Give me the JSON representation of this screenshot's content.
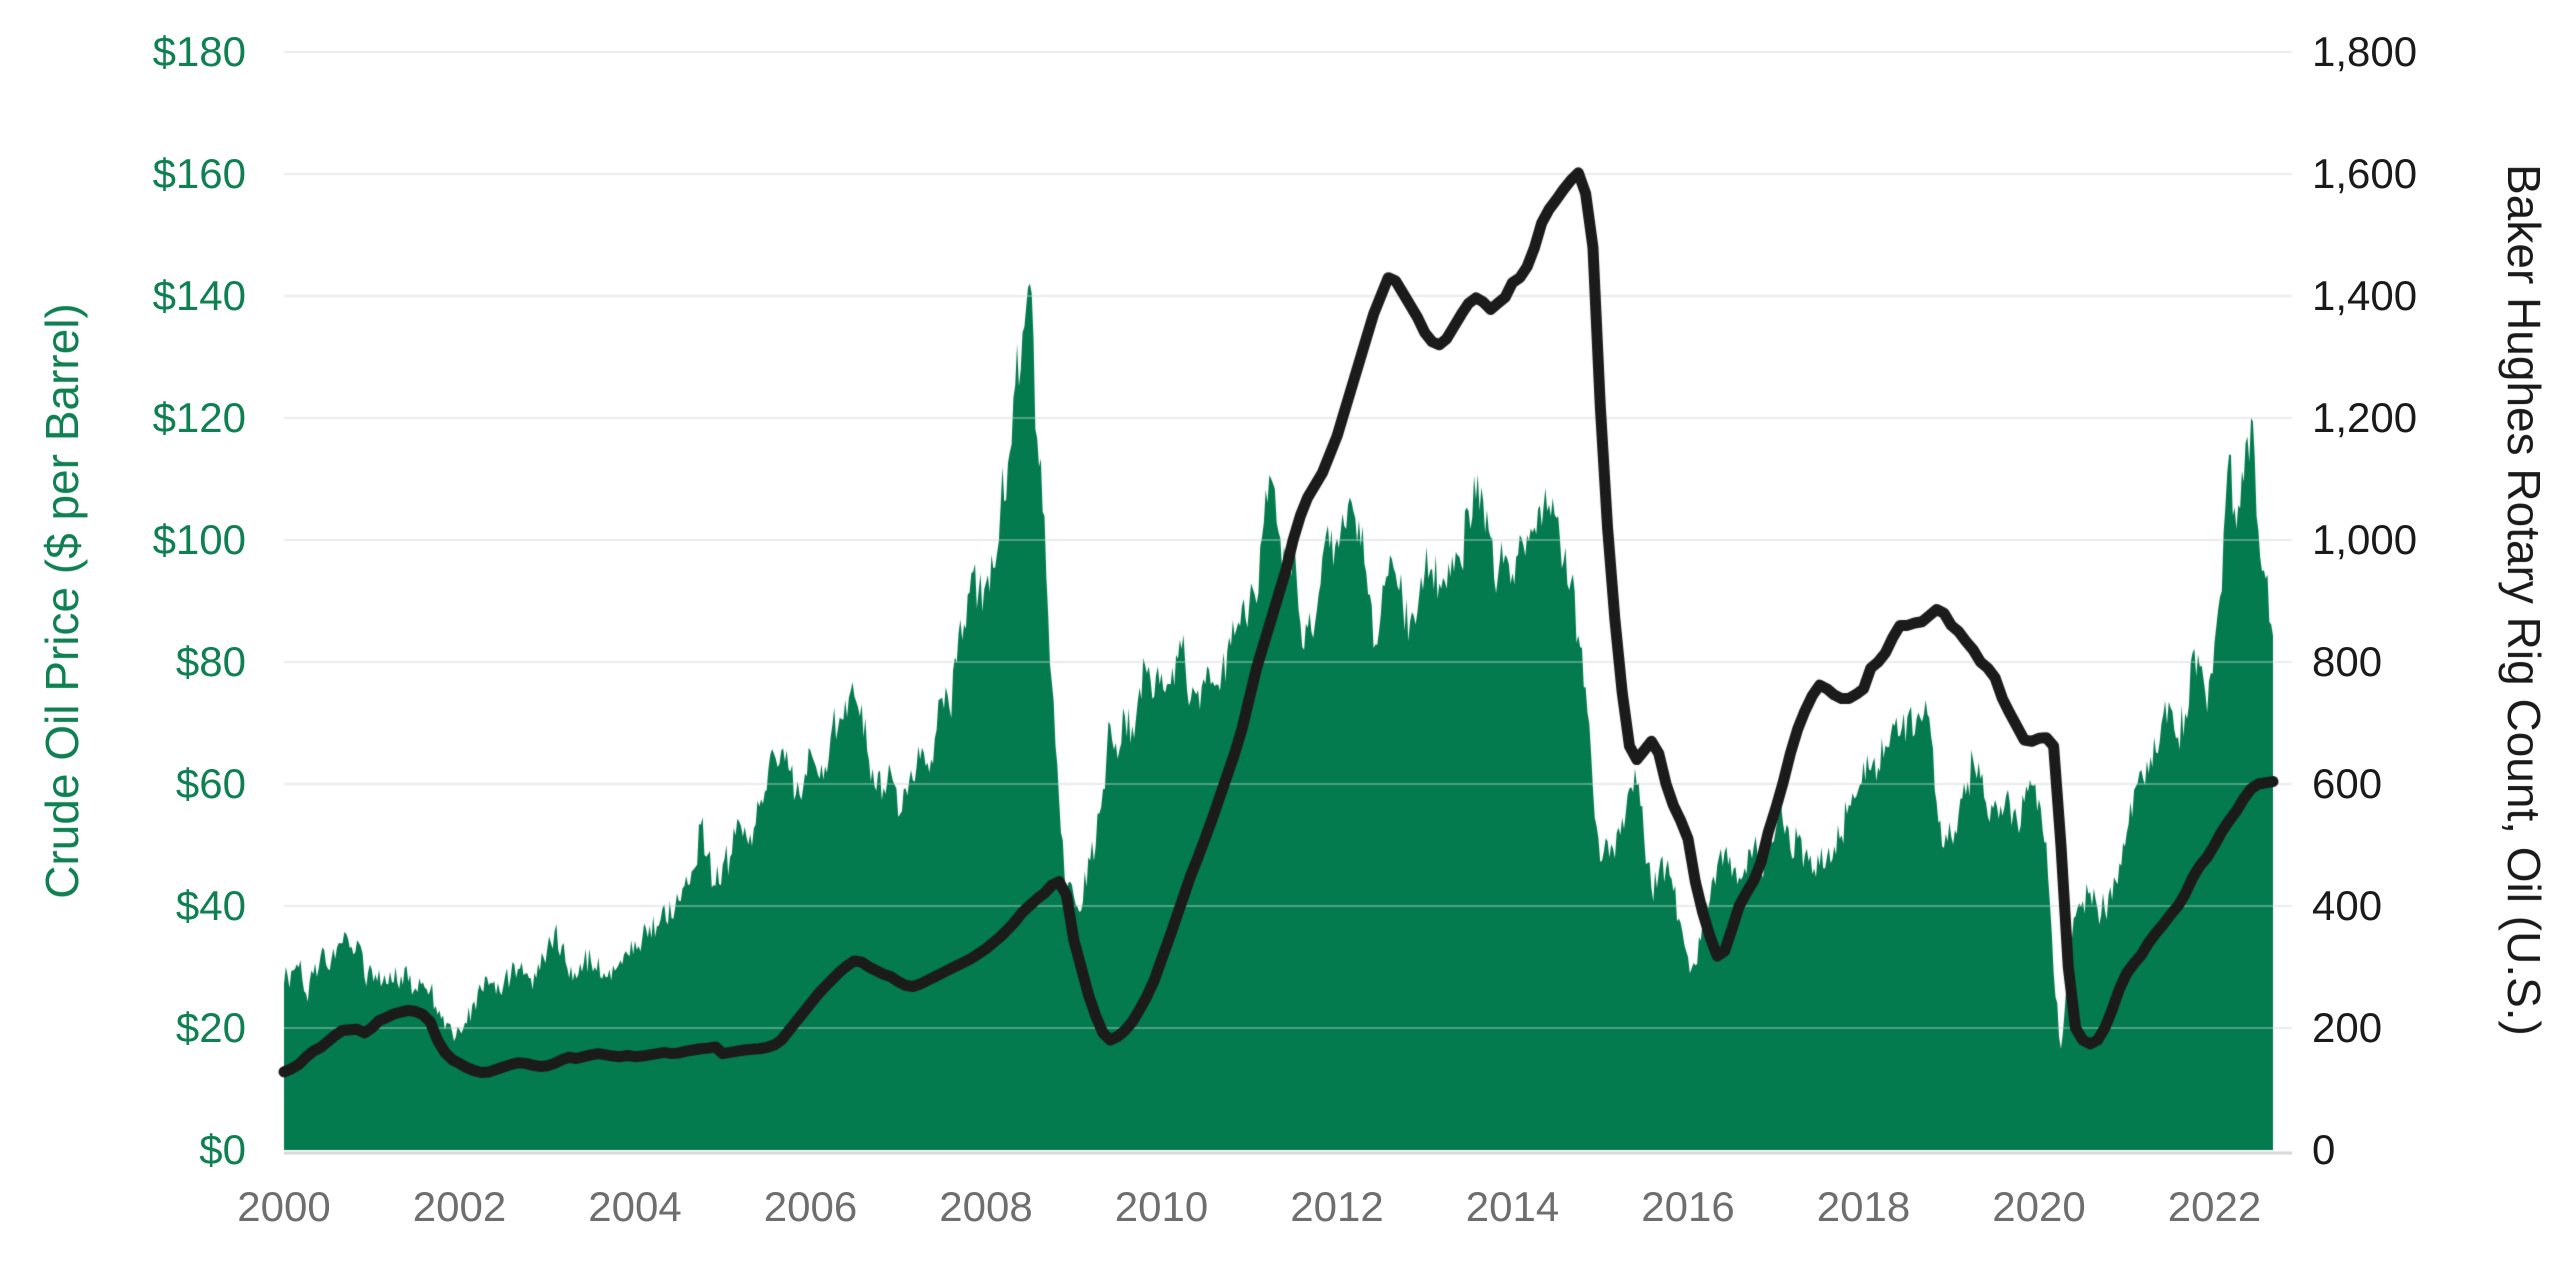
{
  "chart_data": {
    "type": "area",
    "title": "",
    "legend": "none",
    "grid": true,
    "background": "#ffffff",
    "gridline_color": "#e3e3e3",
    "baseline_color": "#d8d8d8",
    "x_axis": {
      "start": "2000-01",
      "end": "2022-09",
      "interval": "monthly",
      "tick_years": [
        2000,
        2002,
        2004,
        2006,
        2008,
        2010,
        2012,
        2014,
        2016,
        2018,
        2020,
        2022
      ],
      "tick_labels": [
        "2000",
        "2002",
        "2004",
        "2006",
        "2008",
        "2010",
        "2012",
        "2014",
        "2016",
        "2018",
        "2020",
        "2022"
      ],
      "label_color": "#6e6e6e"
    },
    "left_axis": {
      "label": "Crude Oil Price ($ per Barrel)",
      "range": [
        0,
        180
      ],
      "tick_values": [
        0,
        20,
        40,
        60,
        80,
        100,
        120,
        140,
        160,
        180
      ],
      "tick_labels": [
        "$0",
        "$20",
        "$40",
        "$60",
        "$80",
        "$100",
        "$120",
        "$140",
        "$160",
        "$180"
      ],
      "color": "#0e8052"
    },
    "right_axis": {
      "label": "Baker Hughes Rotary Rig Count, Oil (U.S.)",
      "range": [
        0,
        1800
      ],
      "tick_values": [
        0,
        200,
        400,
        600,
        800,
        1000,
        1200,
        1400,
        1600,
        1800
      ],
      "tick_labels": [
        "0",
        "200",
        "400",
        "600",
        "800",
        "1,000",
        "1,200",
        "1,400",
        "1,600",
        "1,800"
      ],
      "color": "#1a1a1a"
    },
    "series": [
      {
        "name": "Crude Oil Price ($ per Barrel)",
        "type": "area",
        "axis": "left",
        "color": "#047a4f",
        "unit": "USD per barrel",
        "values": [
          27.2,
          29.4,
          29.9,
          25.7,
          28.8,
          31.8,
          29.7,
          31.3,
          33.9,
          33.1,
          34.4,
          28.4,
          29.6,
          29.6,
          27.2,
          27.4,
          28.6,
          27.6,
          26.5,
          27.5,
          26.2,
          22.2,
          19.7,
          19.3,
          19.7,
          20.7,
          24.4,
          26.3,
          27.0,
          25.5,
          26.9,
          28.4,
          29.7,
          28.9,
          26.3,
          29.4,
          33.0,
          35.8,
          33.5,
          28.2,
          28.1,
          30.7,
          30.8,
          31.6,
          28.3,
          30.3,
          31.1,
          32.1,
          34.3,
          34.7,
          36.8,
          36.7,
          40.3,
          38.0,
          40.8,
          44.9,
          46.0,
          53.3,
          48.5,
          43.3,
          46.8,
          48.0,
          54.3,
          53.0,
          49.8,
          56.3,
          59.0,
          65.0,
          65.5,
          62.4,
          58.3,
          59.4,
          65.5,
          61.6,
          62.9,
          69.7,
          70.9,
          70.9,
          74.4,
          73.1,
          63.9,
          58.9,
          59.4,
          62.0,
          54.6,
          59.3,
          60.6,
          64.0,
          63.5,
          67.5,
          74.2,
          72.4,
          79.9,
          86.2,
          94.6,
          91.7,
          93.0,
          95.4,
          105.6,
          112.6,
          125.4,
          134.0,
          142.0,
          116.7,
          103.9,
          76.7,
          57.4,
          41.0,
          41.7,
          39.2,
          48.0,
          49.8,
          59.2,
          69.7,
          64.1,
          71.1,
          69.5,
          75.8,
          78.1,
          74.3,
          78.2,
          76.4,
          81.2,
          84.5,
          73.8,
          75.4,
          76.4,
          76.8,
          75.3,
          81.9,
          84.3,
          89.2,
          89.4,
          89.6,
          102.9,
          110.0,
          101.3,
          96.3,
          97.3,
          86.3,
          85.6,
          86.4,
          97.2,
          98.6,
          100.3,
          102.3,
          106.2,
          103.3,
          94.7,
          82.3,
          87.9,
          94.1,
          94.5,
          89.5,
          86.7,
          88.2,
          94.8,
          95.3,
          92.9,
          92.0,
          94.8,
          95.8,
          104.7,
          106.6,
          106.3,
          100.5,
          93.9,
          97.6,
          94.6,
          100.8,
          100.8,
          102.1,
          102.2,
          105.8,
          103.6,
          96.5,
          93.2,
          84.4,
          75.8,
          59.3,
          47.2,
          50.6,
          47.8,
          54.5,
          59.3,
          59.8,
          51.2,
          42.9,
          45.5,
          46.2,
          42.4,
          37.2,
          31.7,
          30.3,
          37.6,
          41.0,
          46.7,
          48.8,
          44.7,
          44.7,
          45.2,
          49.8,
          45.7,
          52.0,
          52.5,
          53.5,
          49.3,
          51.1,
          48.5,
          45.2,
          46.6,
          48.0,
          49.8,
          51.6,
          56.6,
          57.9,
          63.7,
          62.2,
          62.7,
          66.3,
          70.0,
          67.9,
          71.0,
          68.1,
          70.2,
          70.8,
          57.0,
          49.5,
          51.4,
          55.0,
          58.2,
          63.9,
          60.8,
          54.7,
          57.4,
          54.8,
          57.0,
          54.0,
          57.0,
          59.8,
          57.5,
          50.5,
          29.2,
          16.6,
          28.6,
          38.3,
          40.8,
          42.3,
          39.6,
          39.4,
          40.9,
          47.0,
          52.0,
          59.0,
          62.3,
          61.7,
          65.2,
          71.4,
          72.5,
          67.7,
          71.6,
          81.5,
          79.2,
          71.7,
          83.2,
          91.6,
          114.0,
          101.8,
          109.5,
          120.0,
          101.6,
          93.7,
          84.3
        ]
      },
      {
        "name": "Baker Hughes Rotary Rig Count, Oil (U.S.)",
        "type": "line",
        "axis": "right",
        "color": "#1b1b1b",
        "unit": "rigs",
        "values": [
          128,
          133,
          140,
          152,
          162,
          168,
          178,
          188,
          196,
          197,
          198,
          192,
          200,
          212,
          217,
          223,
          226,
          229,
          227,
          222,
          210,
          180,
          160,
          148,
          142,
          135,
          130,
          127,
          128,
          132,
          136,
          140,
          143,
          142,
          139,
          137,
          138,
          142,
          148,
          152,
          150,
          153,
          156,
          158,
          156,
          154,
          153,
          155,
          153,
          154,
          156,
          158,
          160,
          158,
          159,
          162,
          164,
          166,
          167,
          169,
          158,
          160,
          162,
          164,
          165,
          166,
          168,
          172,
          180,
          195,
          210,
          225,
          240,
          255,
          268,
          280,
          292,
          302,
          310,
          308,
          300,
          294,
          288,
          284,
          276,
          270,
          268,
          272,
          278,
          284,
          290,
          296,
          302,
          308,
          314,
          322,
          330,
          340,
          350,
          362,
          375,
          390,
          401,
          412,
          421,
          434,
          440,
          418,
          345,
          300,
          255,
          220,
          192,
          180,
          186,
          196,
          210,
          230,
          252,
          278,
          312,
          345,
          380,
          415,
          450,
          480,
          512,
          545,
          580,
          615,
          650,
          690,
          740,
          790,
          830,
          870,
          910,
          950,
          1000,
          1040,
          1070,
          1090,
          1110,
          1140,
          1170,
          1210,
          1250,
          1290,
          1330,
          1370,
          1400,
          1430,
          1425,
          1405,
          1385,
          1365,
          1340,
          1325,
          1320,
          1330,
          1350,
          1370,
          1388,
          1397,
          1390,
          1378,
          1388,
          1398,
          1422,
          1430,
          1448,
          1479,
          1520,
          1542,
          1558,
          1575,
          1590,
          1602,
          1568,
          1480,
          1220,
          1020,
          870,
          750,
          662,
          640,
          655,
          670,
          650,
          600,
          565,
          540,
          510,
          440,
          390,
          350,
          318,
          326,
          362,
          400,
          422,
          442,
          472,
          522,
          560,
          602,
          650,
          690,
          720,
          745,
          762,
          756,
          746,
          740,
          740,
          747,
          756,
          790,
          800,
          815,
          840,
          860,
          860,
          864,
          866,
          876,
          886,
          880,
          860,
          850,
          834,
          820,
          800,
          790,
          774,
          740,
          716,
          694,
          672,
          670,
          675,
          676,
          662,
          500,
          300,
          200,
          180,
          174,
          180,
          200,
          230,
          264,
          290,
          306,
          320,
          340,
          356,
          370,
          386,
          400,
          420,
          446,
          466,
          480,
          500,
          522,
          540,
          556,
          576,
          592,
          600,
          602,
          604
        ]
      }
    ]
  }
}
